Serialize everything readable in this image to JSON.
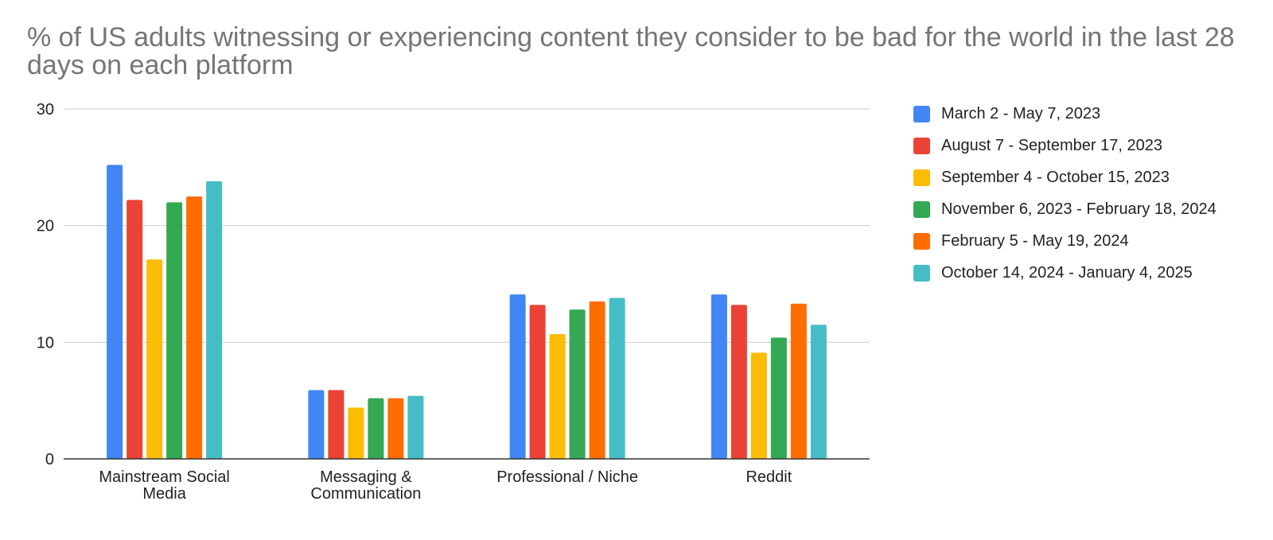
{
  "chart_data": {
    "type": "bar",
    "title": "% of US adults witnessing or experiencing content they consider to be bad for the world in the last 28 days on each platform",
    "xlabel": "",
    "ylabel": "",
    "ylim": [
      0,
      30
    ],
    "yticks": [
      0,
      10,
      20,
      30
    ],
    "grid": true,
    "legend_position": "right",
    "categories": [
      [
        "Mainstream Social",
        "Media"
      ],
      [
        "Messaging &",
        "Communication"
      ],
      [
        "Professional / Niche"
      ],
      [
        "Reddit"
      ]
    ],
    "series": [
      {
        "name": "March 2 - May 7, 2023",
        "color": "#4285f4",
        "values": [
          25.2,
          5.9,
          14.1,
          14.1
        ]
      },
      {
        "name": "August 7 - September 17, 2023",
        "color": "#ea4335",
        "values": [
          22.2,
          5.9,
          13.2,
          13.2
        ]
      },
      {
        "name": "September 4 - October 15, 2023",
        "color": "#fbbc04",
        "values": [
          17.1,
          4.4,
          10.7,
          9.1
        ]
      },
      {
        "name": "November 6, 2023 - February 18, 2024",
        "color": "#34a853",
        "values": [
          22.0,
          5.2,
          12.8,
          10.4
        ]
      },
      {
        "name": "February 5 - May 19, 2024",
        "color": "#ff6d01",
        "values": [
          22.5,
          5.2,
          13.5,
          13.3
        ]
      },
      {
        "name": "October 14, 2024 - January 4, 2025",
        "color": "#46bdc6",
        "values": [
          23.8,
          5.4,
          13.8,
          11.5
        ]
      }
    ]
  }
}
